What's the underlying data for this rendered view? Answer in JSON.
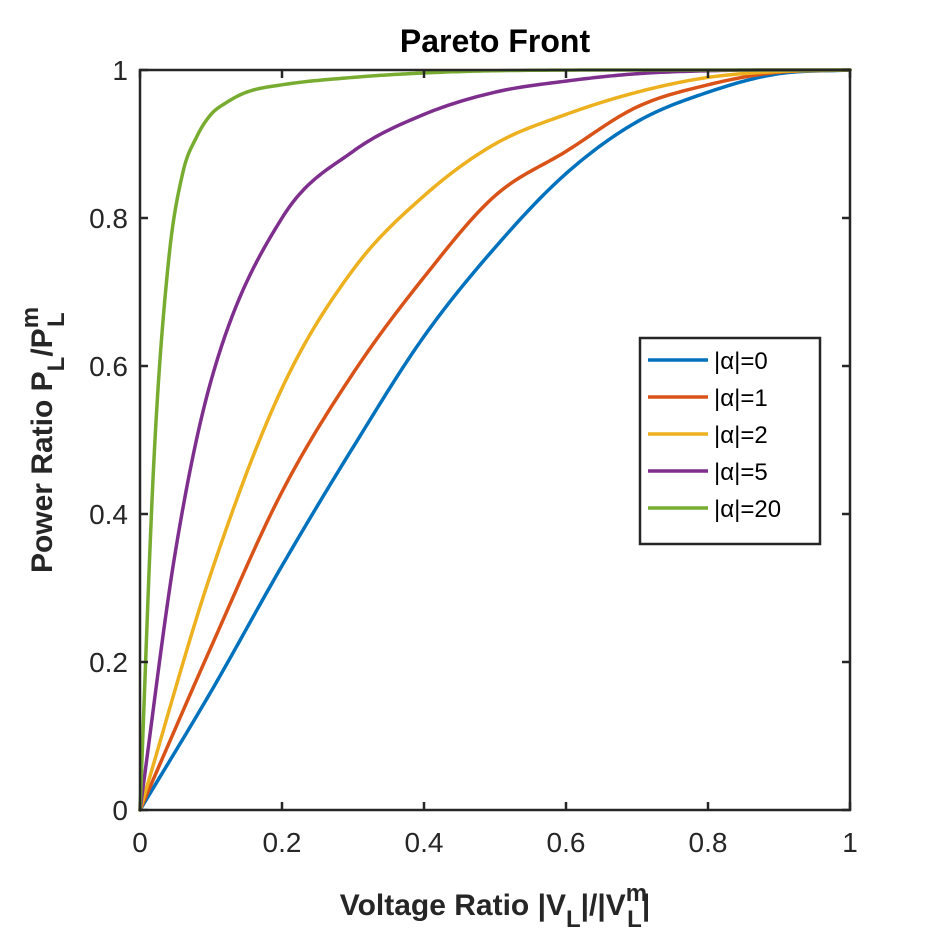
{
  "chart_data": {
    "type": "line",
    "title": "Pareto Front",
    "xlabel": "Voltage Ratio |V_L|/|V_L^m|",
    "ylabel": "Power Ratio P_L/P_L^m",
    "xlim": [
      0,
      1
    ],
    "ylim": [
      0,
      1
    ],
    "xticks": [
      0,
      0.2,
      0.4,
      0.6,
      0.8,
      1
    ],
    "yticks": [
      0,
      0.2,
      0.4,
      0.6,
      0.8,
      1
    ],
    "xtick_labels": [
      "0",
      "0.2",
      "0.4",
      "0.6",
      "0.8",
      "1"
    ],
    "ytick_labels": [
      "0",
      "0.2",
      "0.4",
      "0.6",
      "0.8",
      "1"
    ],
    "grid": false,
    "legend_position": "right",
    "series": [
      {
        "name": "|α|=0",
        "color": "#0072BD",
        "x": [
          0,
          0.1,
          0.2,
          0.3,
          0.4,
          0.5,
          0.6,
          0.7,
          0.8,
          0.9,
          1.0
        ],
        "y": [
          0,
          0.16,
          0.33,
          0.49,
          0.64,
          0.76,
          0.86,
          0.93,
          0.97,
          0.995,
          1.0
        ]
      },
      {
        "name": "|α|=1",
        "color": "#D95319",
        "x": [
          0,
          0.1,
          0.2,
          0.3,
          0.4,
          0.5,
          0.6,
          0.7,
          0.8,
          0.9,
          1.0
        ],
        "y": [
          0,
          0.22,
          0.43,
          0.59,
          0.72,
          0.83,
          0.89,
          0.95,
          0.98,
          0.997,
          1.0
        ]
      },
      {
        "name": "|α|=2",
        "color": "#EDB120",
        "x": [
          0,
          0.1,
          0.2,
          0.3,
          0.4,
          0.5,
          0.6,
          0.7,
          0.8,
          0.9,
          1.0
        ],
        "y": [
          0,
          0.32,
          0.57,
          0.73,
          0.83,
          0.9,
          0.94,
          0.97,
          0.99,
          0.998,
          1.0
        ]
      },
      {
        "name": "|α|=5",
        "color": "#7E2F8E",
        "x": [
          0,
          0.05,
          0.1,
          0.2,
          0.3,
          0.4,
          0.5,
          0.6,
          0.7,
          0.8,
          0.9,
          1.0
        ],
        "y": [
          0,
          0.35,
          0.58,
          0.8,
          0.89,
          0.94,
          0.97,
          0.985,
          0.995,
          0.999,
          1.0,
          1.0
        ]
      },
      {
        "name": "|α|=20",
        "color": "#77AC30",
        "x": [
          0,
          0.02,
          0.04,
          0.06,
          0.08,
          0.1,
          0.12,
          0.15,
          0.2,
          0.3,
          0.4,
          0.5,
          0.7,
          1.0
        ],
        "y": [
          0,
          0.48,
          0.74,
          0.86,
          0.91,
          0.94,
          0.955,
          0.97,
          0.98,
          0.99,
          0.996,
          0.999,
          1.0,
          1.0
        ]
      }
    ]
  }
}
